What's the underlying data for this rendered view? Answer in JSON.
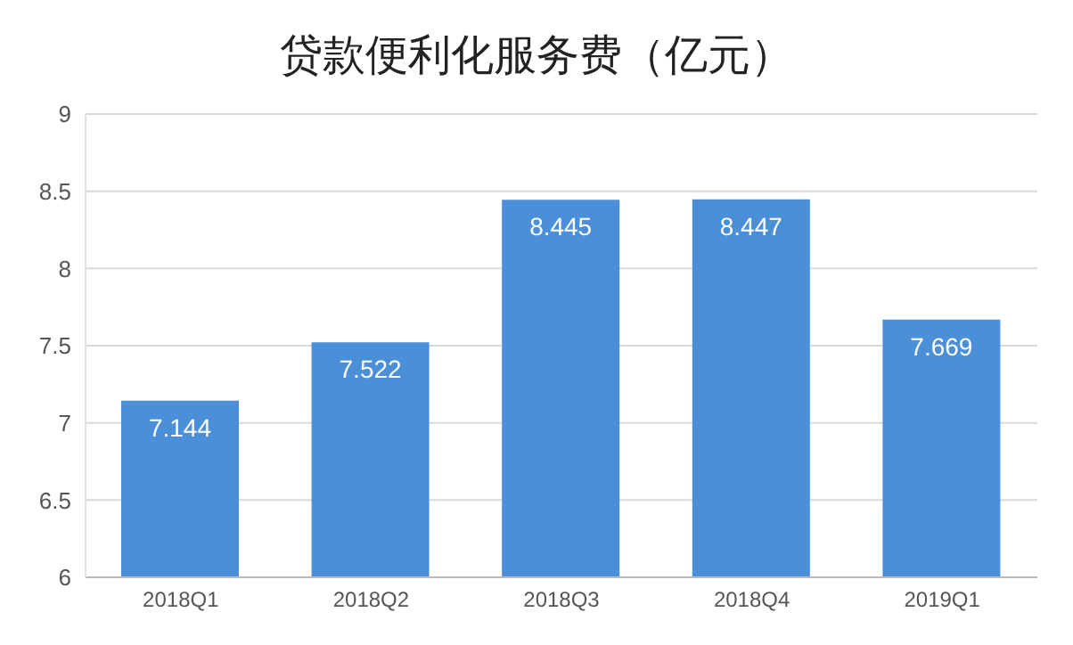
{
  "chart_data": {
    "type": "bar",
    "title": "贷款便利化服务费（亿元）",
    "categories": [
      "2018Q1",
      "2018Q2",
      "2018Q3",
      "2018Q4",
      "2019Q1"
    ],
    "values": [
      7.144,
      7.522,
      8.445,
      8.447,
      7.669
    ],
    "color": "#4a8fd8",
    "ylim": [
      6,
      9
    ],
    "yticks": [
      6,
      6.5,
      7,
      7.5,
      8,
      8.5,
      9
    ],
    "grid": "y",
    "data_labels": true
  }
}
